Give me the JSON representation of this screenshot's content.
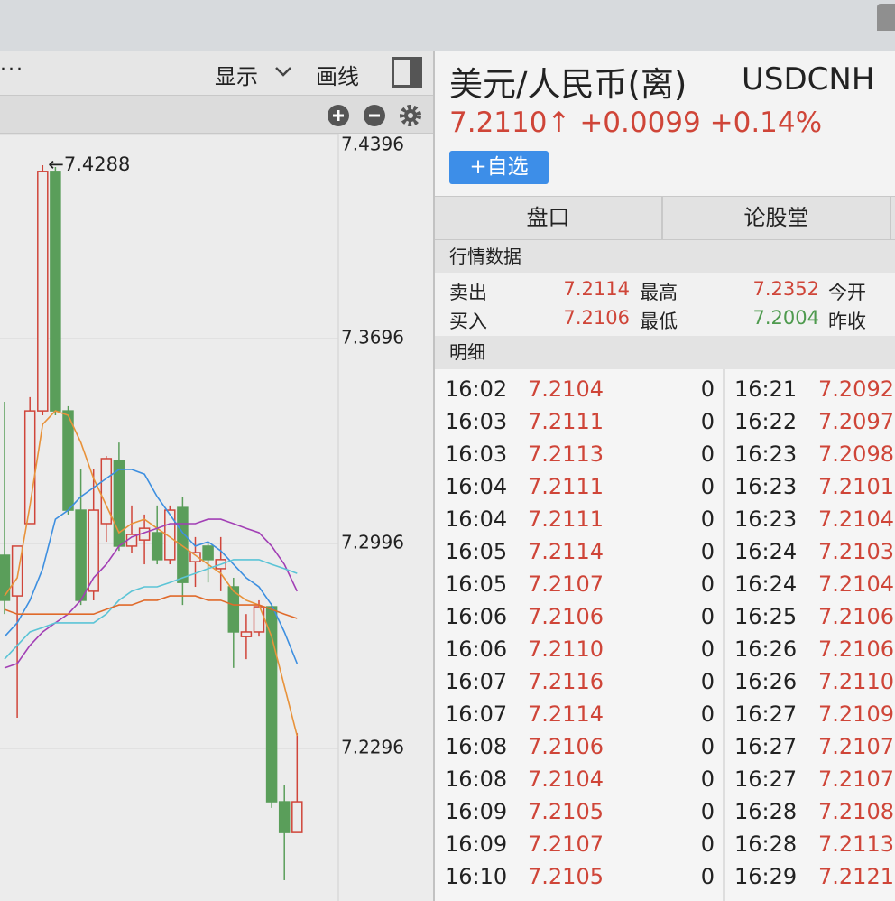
{
  "toolbar": {
    "more": "···",
    "display": "显示",
    "draw": "画线"
  },
  "header": {
    "title": "美元/人民币(离)",
    "code": "USDCNH",
    "price": "7.2110↑",
    "change": "+0.0099",
    "change_pct": "+0.14%",
    "add_button": "+自选"
  },
  "tabs": [
    "盘口",
    "论股堂"
  ],
  "quote": {
    "title": "行情数据",
    "rows": [
      [
        "卖出",
        "7.2114",
        "最高",
        "7.2352",
        "今开"
      ],
      [
        "买入",
        "7.2106",
        "最低",
        "7.2004",
        "昨收"
      ]
    ]
  },
  "detail": {
    "title": "明细",
    "left": [
      [
        "16:02",
        "7.2104",
        "0"
      ],
      [
        "16:03",
        "7.2111",
        "0"
      ],
      [
        "16:03",
        "7.2113",
        "0"
      ],
      [
        "16:04",
        "7.2111",
        "0"
      ],
      [
        "16:04",
        "7.2111",
        "0"
      ],
      [
        "16:05",
        "7.2114",
        "0"
      ],
      [
        "16:05",
        "7.2107",
        "0"
      ],
      [
        "16:06",
        "7.2106",
        "0"
      ],
      [
        "16:06",
        "7.2110",
        "0"
      ],
      [
        "16:07",
        "7.2116",
        "0"
      ],
      [
        "16:07",
        "7.2114",
        "0"
      ],
      [
        "16:08",
        "7.2106",
        "0"
      ],
      [
        "16:08",
        "7.2104",
        "0"
      ],
      [
        "16:09",
        "7.2105",
        "0"
      ],
      [
        "16:09",
        "7.2107",
        "0"
      ],
      [
        "16:10",
        "7.2105",
        "0"
      ]
    ],
    "right": [
      [
        "16:21",
        "7.2092"
      ],
      [
        "16:22",
        "7.2097"
      ],
      [
        "16:23",
        "7.2098"
      ],
      [
        "16:23",
        "7.2101"
      ],
      [
        "16:23",
        "7.2104"
      ],
      [
        "16:24",
        "7.2103"
      ],
      [
        "16:24",
        "7.2104"
      ],
      [
        "16:25",
        "7.2106"
      ],
      [
        "16:26",
        "7.2106"
      ],
      [
        "16:26",
        "7.2110"
      ],
      [
        "16:27",
        "7.2109"
      ],
      [
        "16:27",
        "7.2107"
      ],
      [
        "16:27",
        "7.2107"
      ],
      [
        "16:28",
        "7.2108"
      ],
      [
        "16:28",
        "7.2113"
      ],
      [
        "16:29",
        "7.2121"
      ]
    ]
  },
  "chart_data": {
    "type": "candlestick",
    "ylim": [
      7.1775,
      7.4396
    ],
    "yticks": [
      7.4396,
      7.3696,
      7.2996,
      7.2296
    ],
    "grid": true,
    "high_marker": "←7.4288",
    "up_color": "#d0453a",
    "down_color": "#5a9e5a",
    "candles": [
      {
        "open": 7.2956,
        "high": 7.348,
        "low": 7.2755,
        "close": 7.2802
      },
      {
        "open": 7.2817,
        "high": 7.2987,
        "low": 7.2401,
        "close": 7.2987
      },
      {
        "open": 7.3064,
        "high": 7.3496,
        "low": 7.3064,
        "close": 7.3449
      },
      {
        "open": 7.3449,
        "high": 7.4288,
        "low": 7.3434,
        "close": 7.4267
      },
      {
        "open": 7.4267,
        "high": 7.4282,
        "low": 7.3434,
        "close": 7.3449
      },
      {
        "open": 7.3449,
        "high": 7.3465,
        "low": 7.3095,
        "close": 7.311
      },
      {
        "open": 7.311,
        "high": 7.3249,
        "low": 7.2786,
        "close": 7.2802
      },
      {
        "open": 7.2833,
        "high": 7.3249,
        "low": 7.2802,
        "close": 7.311
      },
      {
        "open": 7.3064,
        "high": 7.3295,
        "low": 7.3002,
        "close": 7.3286
      },
      {
        "open": 7.328,
        "high": 7.3341,
        "low": 7.2971,
        "close": 7.2987
      },
      {
        "open": 7.2987,
        "high": 7.3126,
        "low": 7.2965,
        "close": 7.3027
      },
      {
        "open": 7.3008,
        "high": 7.3095,
        "low": 7.2925,
        "close": 7.3048
      },
      {
        "open": 7.3033,
        "high": 7.3126,
        "low": 7.2925,
        "close": 7.2941
      },
      {
        "open": 7.2941,
        "high": 7.3126,
        "low": 7.2925,
        "close": 7.311
      },
      {
        "open": 7.3119,
        "high": 7.3156,
        "low": 7.2786,
        "close": 7.2863
      },
      {
        "open": 7.2934,
        "high": 7.3018,
        "low": 7.2848,
        "close": 7.2965
      },
      {
        "open": 7.2987,
        "high": 7.3002,
        "low": 7.2863,
        "close": 7.2941
      },
      {
        "open": 7.291,
        "high": 7.3018,
        "low": 7.2833,
        "close": 7.2941
      },
      {
        "open": 7.2848,
        "high": 7.2879,
        "low": 7.2571,
        "close": 7.2694
      },
      {
        "open": 7.2678,
        "high": 7.2755,
        "low": 7.2601,
        "close": 7.2694
      },
      {
        "open": 7.2694,
        "high": 7.2802,
        "low": 7.2678,
        "close": 7.278
      },
      {
        "open": 7.278,
        "high": 7.2793,
        "low": 7.2093,
        "close": 7.2114
      },
      {
        "open": 7.2114,
        "high": 7.217,
        "low": 7.1846,
        "close": 7.2009
      },
      {
        "open": 7.2009,
        "high": 7.2348,
        "low": 7.2009,
        "close": 7.2114
      }
    ],
    "series": [
      {
        "color": "#e8923a",
        "values": [
          7.2817,
          7.2879,
          7.3126,
          7.3403,
          7.3449,
          7.3434,
          7.3341,
          7.3218,
          7.3126,
          7.3033,
          7.3064,
          7.3079,
          7.3048,
          7.3018,
          7.2987,
          7.2956,
          7.2925,
          7.2894,
          7.2833,
          7.2802,
          7.2786,
          7.2678,
          7.2509,
          7.2339
        ]
      },
      {
        "color": "#3d8fe0",
        "values": [
          7.2678,
          7.2725,
          7.2802,
          7.291,
          7.3079,
          7.311,
          7.3156,
          7.3187,
          7.3218,
          7.3249,
          7.3249,
          7.3233,
          7.3156,
          7.3095,
          7.3033,
          7.2987,
          7.3002,
          7.2971,
          7.2925,
          7.2879,
          7.2848,
          7.2786,
          7.2694,
          7.2586
        ]
      },
      {
        "color": "#a23fb5",
        "values": [
          7.2571,
          7.2586,
          7.2648,
          7.2694,
          7.2725,
          7.2755,
          7.2802,
          7.2879,
          7.2925,
          7.2987,
          7.3018,
          7.3033,
          7.3048,
          7.3064,
          7.3064,
          7.3064,
          7.3079,
          7.3079,
          7.3064,
          7.3048,
          7.3033,
          7.2987,
          7.2925,
          7.2833
        ]
      },
      {
        "color": "#5bc4d6",
        "values": [
          7.2601,
          7.2648,
          7.2694,
          7.2709,
          7.2725,
          7.2725,
          7.2725,
          7.2725,
          7.2755,
          7.2802,
          7.2833,
          7.2848,
          7.2848,
          7.2863,
          7.2879,
          7.2894,
          7.291,
          7.2925,
          7.2941,
          7.2941,
          7.2941,
          7.2925,
          7.291,
          7.2894
        ]
      },
      {
        "color": "#e06a2a",
        "values": [
          7.2771,
          7.2755,
          7.2755,
          7.2755,
          7.2755,
          7.2755,
          7.2755,
          7.2755,
          7.2771,
          7.2786,
          7.2786,
          7.2802,
          7.2802,
          7.2817,
          7.2817,
          7.2817,
          7.2802,
          7.2802,
          7.2786,
          7.2786,
          7.2786,
          7.2771,
          7.2755,
          7.274
        ]
      }
    ]
  }
}
